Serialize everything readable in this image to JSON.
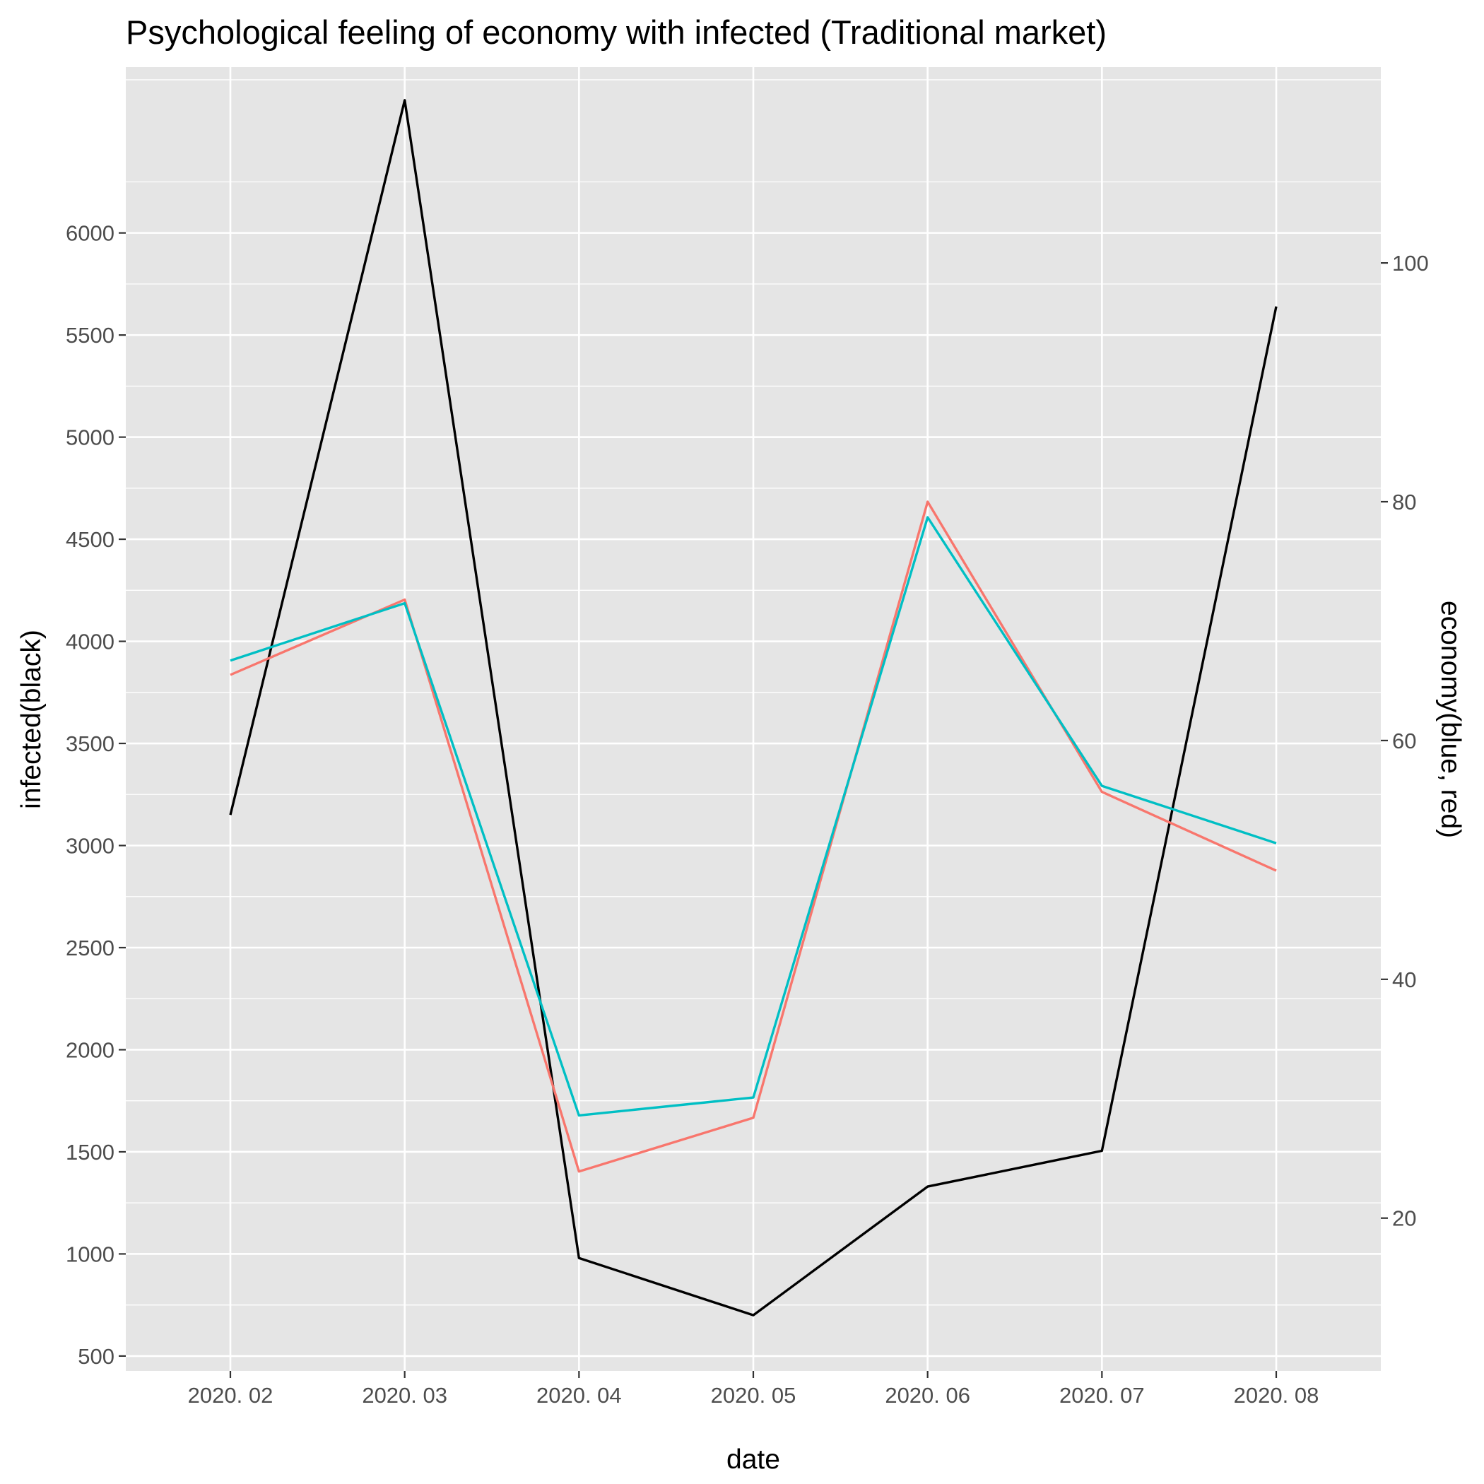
{
  "chart_data": {
    "type": "line",
    "title": "Psychological feeling of economy with infected (Traditional market)",
    "xlabel": "date",
    "ylabel": "infected(black)",
    "y2label": "economy(blue, red)",
    "categories": [
      "2020. 02",
      "2020. 03",
      "2020. 04",
      "2020. 05",
      "2020. 06",
      "2020. 07",
      "2020. 08"
    ],
    "ylim": [
      427,
      6812
    ],
    "y2lim": [
      7.2,
      116.4
    ],
    "y_ticks": [
      "500",
      "1000",
      "1500",
      "2000",
      "2500",
      "3000",
      "3500",
      "4000",
      "4500",
      "5000",
      "5500",
      "6000"
    ],
    "y2_ticks": [
      "20",
      "40",
      "60",
      "80",
      "100"
    ],
    "grid": true,
    "legend": "none",
    "series": [
      {
        "axis": "left",
        "color": "#000000",
        "values": [
          3150,
          6650,
          980,
          700,
          1330,
          1505,
          5640
        ]
      },
      {
        "axis": "right",
        "color": "#F8766D",
        "values": [
          65.5,
          71.8,
          23.9,
          28.4,
          80.0,
          55.7,
          49.1
        ]
      },
      {
        "axis": "right",
        "color": "#00BFC4",
        "values": [
          66.7,
          71.5,
          28.6,
          30.1,
          78.7,
          56.2,
          51.4
        ]
      }
    ]
  }
}
